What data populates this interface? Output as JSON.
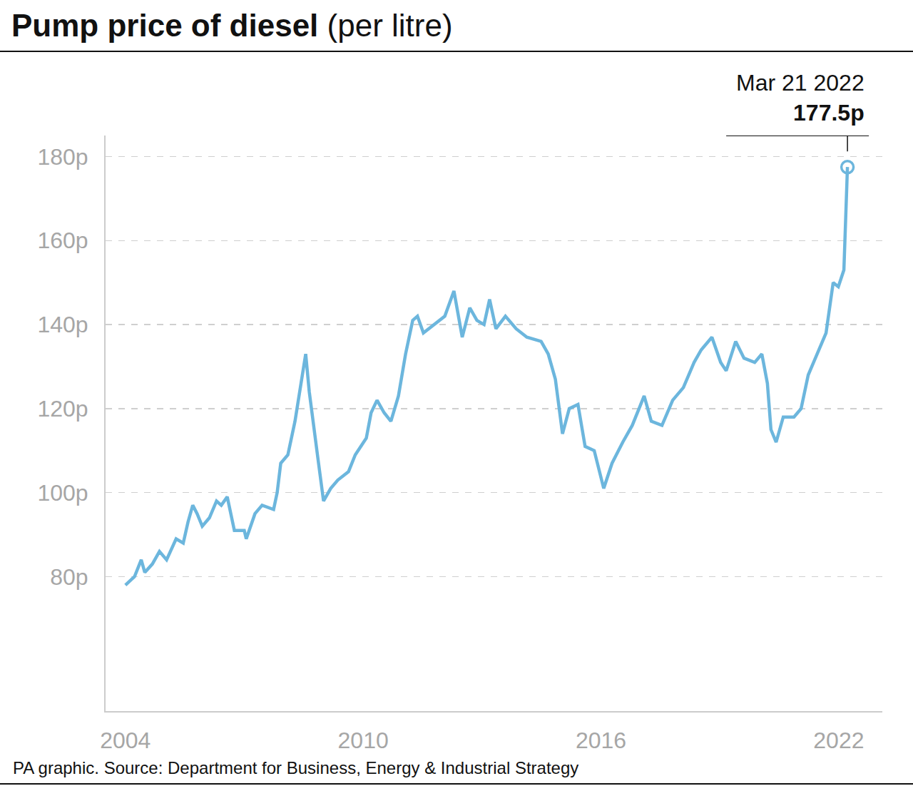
{
  "chart_data": {
    "type": "line",
    "title": "Pump price of diesel",
    "subtitle": "(per litre)",
    "source": "PA graphic. Source: Department for Business, Energy & Industrial Strategy",
    "color": "#6cb6dd",
    "grid": true,
    "x": [
      2004.0,
      2004.23,
      2004.4,
      2004.49,
      2004.68,
      2004.86,
      2005.04,
      2005.28,
      2005.46,
      2005.58,
      2005.7,
      2005.81,
      2005.94,
      2006.12,
      2006.3,
      2006.42,
      2006.57,
      2006.75,
      2007.0,
      2007.05,
      2007.27,
      2007.45,
      2007.74,
      2007.83,
      2007.92,
      2008.1,
      2008.28,
      2008.42,
      2008.55,
      2008.64,
      2008.73,
      2008.86,
      2009.0,
      2009.18,
      2009.36,
      2009.63,
      2009.8,
      2010.08,
      2010.2,
      2010.35,
      2010.53,
      2010.7,
      2010.89,
      2011.07,
      2011.25,
      2011.37,
      2011.52,
      2011.79,
      2012.06,
      2012.29,
      2012.5,
      2012.69,
      2012.87,
      2013.05,
      2013.19,
      2013.35,
      2013.59,
      2013.86,
      2014.13,
      2014.49,
      2014.67,
      2014.85,
      2015.03,
      2015.2,
      2015.42,
      2015.6,
      2015.83,
      2016.07,
      2016.28,
      2016.55,
      2016.79,
      2017.09,
      2017.27,
      2017.54,
      2017.81,
      2018.08,
      2018.35,
      2018.53,
      2018.8,
      2019.02,
      2019.16,
      2019.4,
      2019.61,
      2019.88,
      2020.06,
      2020.2,
      2020.29,
      2020.42,
      2020.6,
      2020.87,
      2021.05,
      2021.23,
      2021.5,
      2021.68,
      2021.86,
      2021.99,
      2022.13,
      2022.22
    ],
    "values": [
      78,
      80,
      84,
      81,
      83,
      86,
      84,
      89,
      88,
      93,
      97,
      95,
      92,
      94,
      98,
      97,
      99,
      91,
      91,
      89,
      95,
      97,
      96,
      100,
      107,
      109,
      117,
      125,
      133,
      124,
      117,
      108,
      98,
      101,
      103,
      105,
      109,
      113,
      119,
      122,
      119,
      117,
      123,
      133,
      141,
      142,
      138,
      140,
      142,
      148,
      137,
      144,
      141,
      140,
      146,
      139,
      142,
      139,
      137,
      136,
      133,
      127,
      114,
      120,
      121,
      111,
      110,
      101,
      107,
      112,
      116,
      123,
      117,
      116,
      122,
      125,
      131,
      134,
      137,
      131,
      129,
      136,
      132,
      131,
      133,
      126,
      115,
      112,
      118,
      118,
      120,
      128,
      134,
      138,
      150,
      149,
      153,
      177.5
    ],
    "xlim": [
      2003.5,
      2023.1
    ],
    "xticks": [
      2004,
      2010,
      2016,
      2022
    ],
    "ylim": [
      48,
      185
    ],
    "yticks": [
      {
        "value": 80,
        "label": "80p"
      },
      {
        "value": 100,
        "label": "100p"
      },
      {
        "value": 120,
        "label": "120p"
      },
      {
        "value": 140,
        "label": "140p"
      },
      {
        "value": 160,
        "label": "160p"
      },
      {
        "value": 180,
        "label": "180p"
      }
    ],
    "annotations": [
      {
        "x": 2022.22,
        "y": 177.5,
        "text": "Mar 21 2022",
        "label": "177.5p"
      }
    ]
  }
}
